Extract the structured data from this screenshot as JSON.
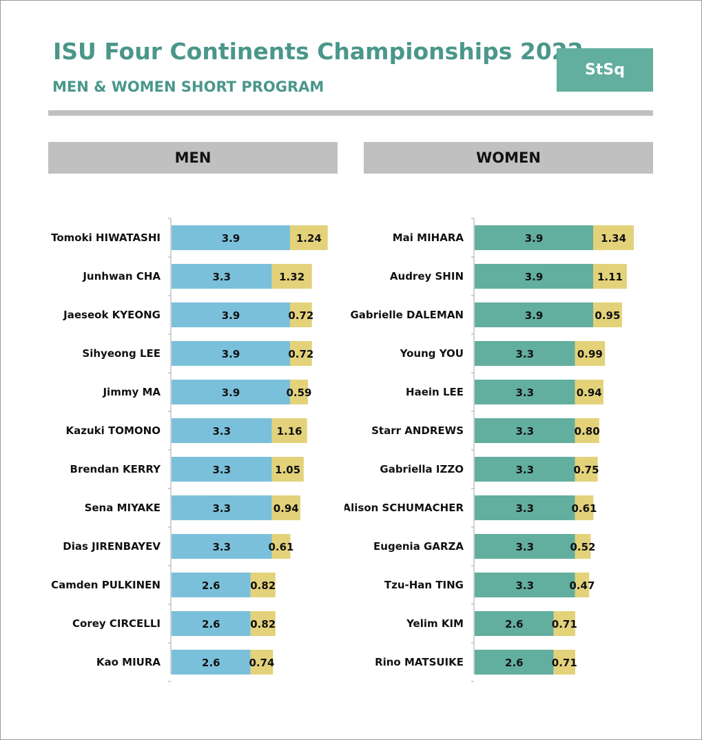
{
  "header": {
    "title": "ISU Four Continents Championships 2022",
    "subtitle": "MEN & WOMEN SHORT PROGRAM",
    "badge": "StSq"
  },
  "colors": {
    "men_base": "#7bc0da",
    "women_base": "#62ae9f",
    "goe": "#e3d27a",
    "title": "#4a978a"
  },
  "chart_data": [
    {
      "type": "bar",
      "orientation": "horizontal",
      "stacked": true,
      "title": "MEN",
      "categories": [
        "Tomoki HIWATASHI",
        "Junhwan CHA",
        "Jaeseok KYEONG",
        "Sihyeong LEE",
        "Jimmy MA",
        "Kazuki TOMONO",
        "Brendan KERRY",
        "Sena MIYAKE",
        "Dias JIRENBAYEV",
        "Camden PULKINEN",
        "Corey CIRCELLI",
        "Kao MIURA"
      ],
      "series": [
        {
          "values": [
            3.9,
            3.3,
            3.9,
            3.9,
            3.9,
            3.3,
            3.3,
            3.3,
            3.3,
            2.6,
            2.6,
            2.6
          ],
          "labels": [
            "3.9",
            "3.3",
            "3.9",
            "3.9",
            "3.9",
            "3.3",
            "3.3",
            "3.3",
            "3.3",
            "2.6",
            "2.6",
            "2.6"
          ]
        },
        {
          "values": [
            1.24,
            1.32,
            0.72,
            0.72,
            0.59,
            1.16,
            1.05,
            0.94,
            0.61,
            0.82,
            0.82,
            0.74
          ],
          "labels": [
            "1.24",
            "1.32",
            "0.72",
            "0.72",
            "0.59",
            "1.16",
            "1.05",
            "0.94",
            "0.61",
            "0.82",
            "0.82",
            "0.74"
          ]
        }
      ],
      "xlim": [
        0,
        5.3
      ]
    },
    {
      "type": "bar",
      "orientation": "horizontal",
      "stacked": true,
      "title": "WOMEN",
      "categories": [
        "Mai MIHARA",
        "Audrey SHIN",
        "Gabrielle DALEMAN",
        "Young YOU",
        "Haein LEE",
        "Starr ANDREWS",
        "Gabriella IZZO",
        "Alison SCHUMACHER",
        "Eugenia GARZA",
        "Tzu-Han TING",
        "Yelim KIM",
        "Rino MATSUIKE"
      ],
      "series": [
        {
          "values": [
            3.9,
            3.9,
            3.9,
            3.3,
            3.3,
            3.3,
            3.3,
            3.3,
            3.3,
            3.3,
            2.6,
            2.6
          ],
          "labels": [
            "3.9",
            "3.9",
            "3.9",
            "3.3",
            "3.3",
            "3.3",
            "3.3",
            "3.3",
            "3.3",
            "3.3",
            "2.6",
            "2.6"
          ]
        },
        {
          "values": [
            1.34,
            1.11,
            0.95,
            0.99,
            0.94,
            0.8,
            0.75,
            0.61,
            0.52,
            0.47,
            0.71,
            0.71
          ],
          "labels": [
            "1.34",
            "1.11",
            "0.95",
            "0.99",
            "0.94",
            "0.80",
            "0.75",
            "0.61",
            "0.52",
            "0.47",
            "0.71",
            "0.71"
          ]
        }
      ],
      "xlim": [
        0,
        5.3
      ]
    }
  ]
}
